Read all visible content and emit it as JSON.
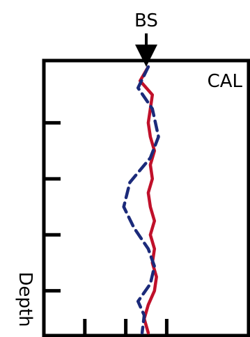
{
  "chart_data": {
    "type": "line",
    "title": "",
    "top_marker_label": "BS",
    "ylabel": "Depth",
    "xlabel": "",
    "bit_size_x": 0,
    "xlim": [
      -5,
      5
    ],
    "ylim": [
      0,
      380
    ],
    "y_ticks": [
      80,
      160,
      240,
      320
    ],
    "x_ticks": [
      -3,
      -1,
      1
    ],
    "grid": false,
    "inverted_y": true,
    "series": [
      {
        "name": "CAL",
        "label_text": "CAL",
        "style": "solid",
        "color": "#c0102a",
        "points": [
          [
            0.1,
            0
          ],
          [
            -0.3,
            20
          ],
          [
            0.3,
            40
          ],
          [
            0.2,
            60
          ],
          [
            0.1,
            80
          ],
          [
            0.2,
            100
          ],
          [
            0.4,
            120
          ],
          [
            0.2,
            140
          ],
          [
            0.3,
            160
          ],
          [
            0.1,
            180
          ],
          [
            0.2,
            200
          ],
          [
            0.4,
            220
          ],
          [
            0.2,
            240
          ],
          [
            0.4,
            260
          ],
          [
            0.3,
            280
          ],
          [
            0.5,
            300
          ],
          [
            0.4,
            320
          ],
          [
            0.1,
            340
          ],
          [
            -0.1,
            360
          ],
          [
            0.1,
            380
          ]
        ]
      },
      {
        "name": "",
        "style": "dashed",
        "color": "#1b2a7a",
        "points": [
          [
            0.1,
            0
          ],
          [
            -0.4,
            30
          ],
          [
            0.3,
            60
          ],
          [
            0.6,
            100
          ],
          [
            0.2,
            130
          ],
          [
            -0.8,
            165
          ],
          [
            -1.1,
            200
          ],
          [
            -0.6,
            230
          ],
          [
            0.1,
            260
          ],
          [
            0.4,
            285
          ],
          [
            0.2,
            310
          ],
          [
            -0.4,
            335
          ],
          [
            -0.1,
            355
          ],
          [
            -0.2,
            380
          ]
        ]
      }
    ],
    "colors": {
      "axis": "#000000",
      "cal": "#c0102a",
      "dashed": "#1b2a7a"
    }
  }
}
